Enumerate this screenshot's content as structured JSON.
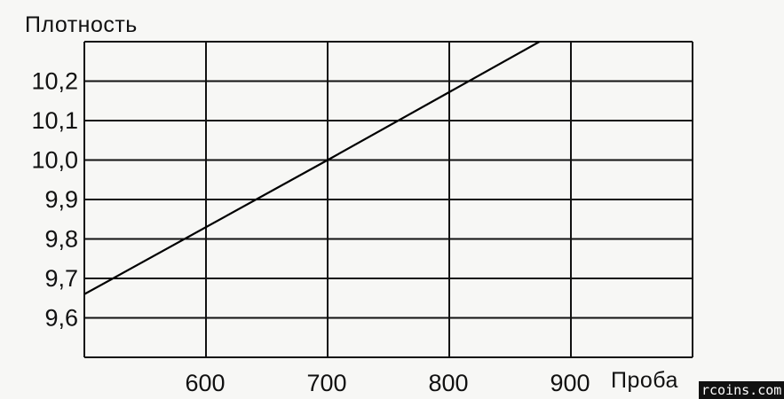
{
  "chart_data": {
    "type": "line",
    "ylabel": "Плотность",
    "xlabel": "Проба",
    "x_ticks": [
      {
        "value": 600,
        "label": "600"
      },
      {
        "value": 700,
        "label": "700"
      },
      {
        "value": 800,
        "label": "800"
      },
      {
        "value": 900,
        "label": "900"
      }
    ],
    "y_ticks": [
      {
        "value": 9.6,
        "label": "9,6"
      },
      {
        "value": 9.7,
        "label": "9,7"
      },
      {
        "value": 9.8,
        "label": "9,8"
      },
      {
        "value": 9.9,
        "label": "9,9"
      },
      {
        "value": 10.0,
        "label": "10,0"
      },
      {
        "value": 10.1,
        "label": "10,1"
      },
      {
        "value": 10.2,
        "label": "10,2"
      }
    ],
    "xlim": [
      500,
      1000
    ],
    "ylim": [
      9.5,
      10.3
    ],
    "grid": true,
    "series": [
      {
        "x": [
          500,
          700,
          880
        ],
        "y": [
          9.66,
          10.0,
          10.31
        ]
      }
    ]
  },
  "watermark": "rcoins.com"
}
